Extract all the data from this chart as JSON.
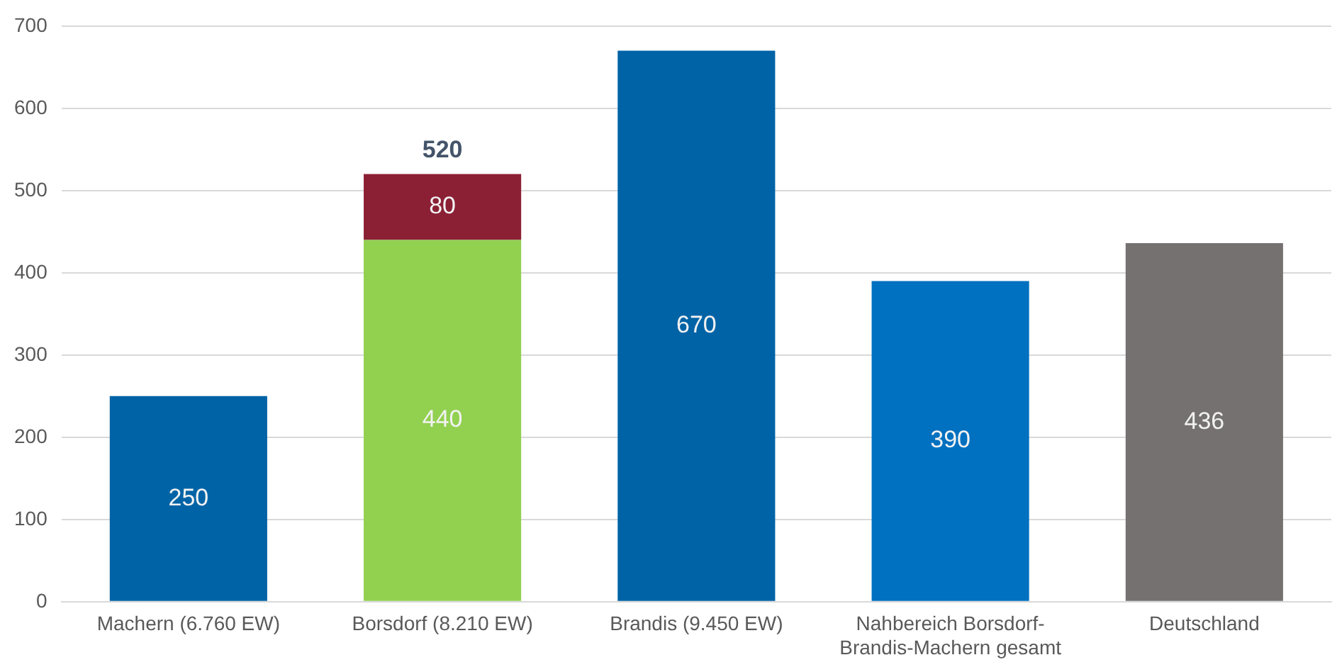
{
  "chart_data": {
    "type": "bar",
    "stacked": true,
    "categories": [
      "Machern (6.760 EW)",
      "Borsdorf (8.210 EW)",
      "Brandis (9.450 EW)",
      "Nahbereich Borsdorf-Brandis-Machern gesamt",
      "Deutschland"
    ],
    "series": [
      {
        "colors": [
          "#0063a6",
          "#92d050",
          "#0063a6",
          "#0070c0",
          "#767171"
        ],
        "values": [
          250,
          440,
          670,
          390,
          436
        ]
      },
      {
        "color": "#8b2035",
        "values": [
          null,
          80,
          null,
          null,
          null
        ]
      }
    ],
    "totals": [
      null,
      "520",
      null,
      null,
      null
    ],
    "data_labels": true,
    "ylim": [
      0,
      700
    ],
    "yticks": [
      0,
      100,
      200,
      300,
      400,
      500,
      600,
      700
    ],
    "grid": "y",
    "legend": false
  }
}
